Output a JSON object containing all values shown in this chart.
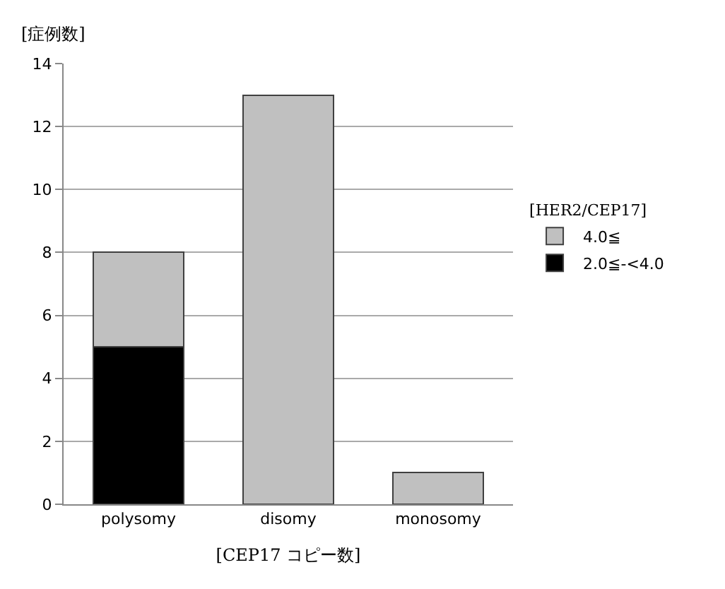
{
  "chart_data": {
    "type": "bar",
    "stacked": true,
    "ylabel": "[症例数]",
    "xlabel": "[CEP17 コピー数]",
    "legend_title": "[HER2/CEP17]",
    "categories": [
      "polysomy",
      "disomy",
      "monosomy"
    ],
    "series": [
      {
        "name": "2.0≦-<4.0",
        "color": "#000000",
        "values": [
          5,
          0,
          0
        ]
      },
      {
        "name": "4.0≦",
        "color": "#c0c0c0",
        "values": [
          3,
          13,
          1
        ]
      }
    ],
    "ylim": [
      0,
      14
    ],
    "yticks": [
      0,
      2,
      4,
      6,
      8,
      10,
      12,
      14
    ],
    "grid": "y",
    "legend": "right"
  }
}
